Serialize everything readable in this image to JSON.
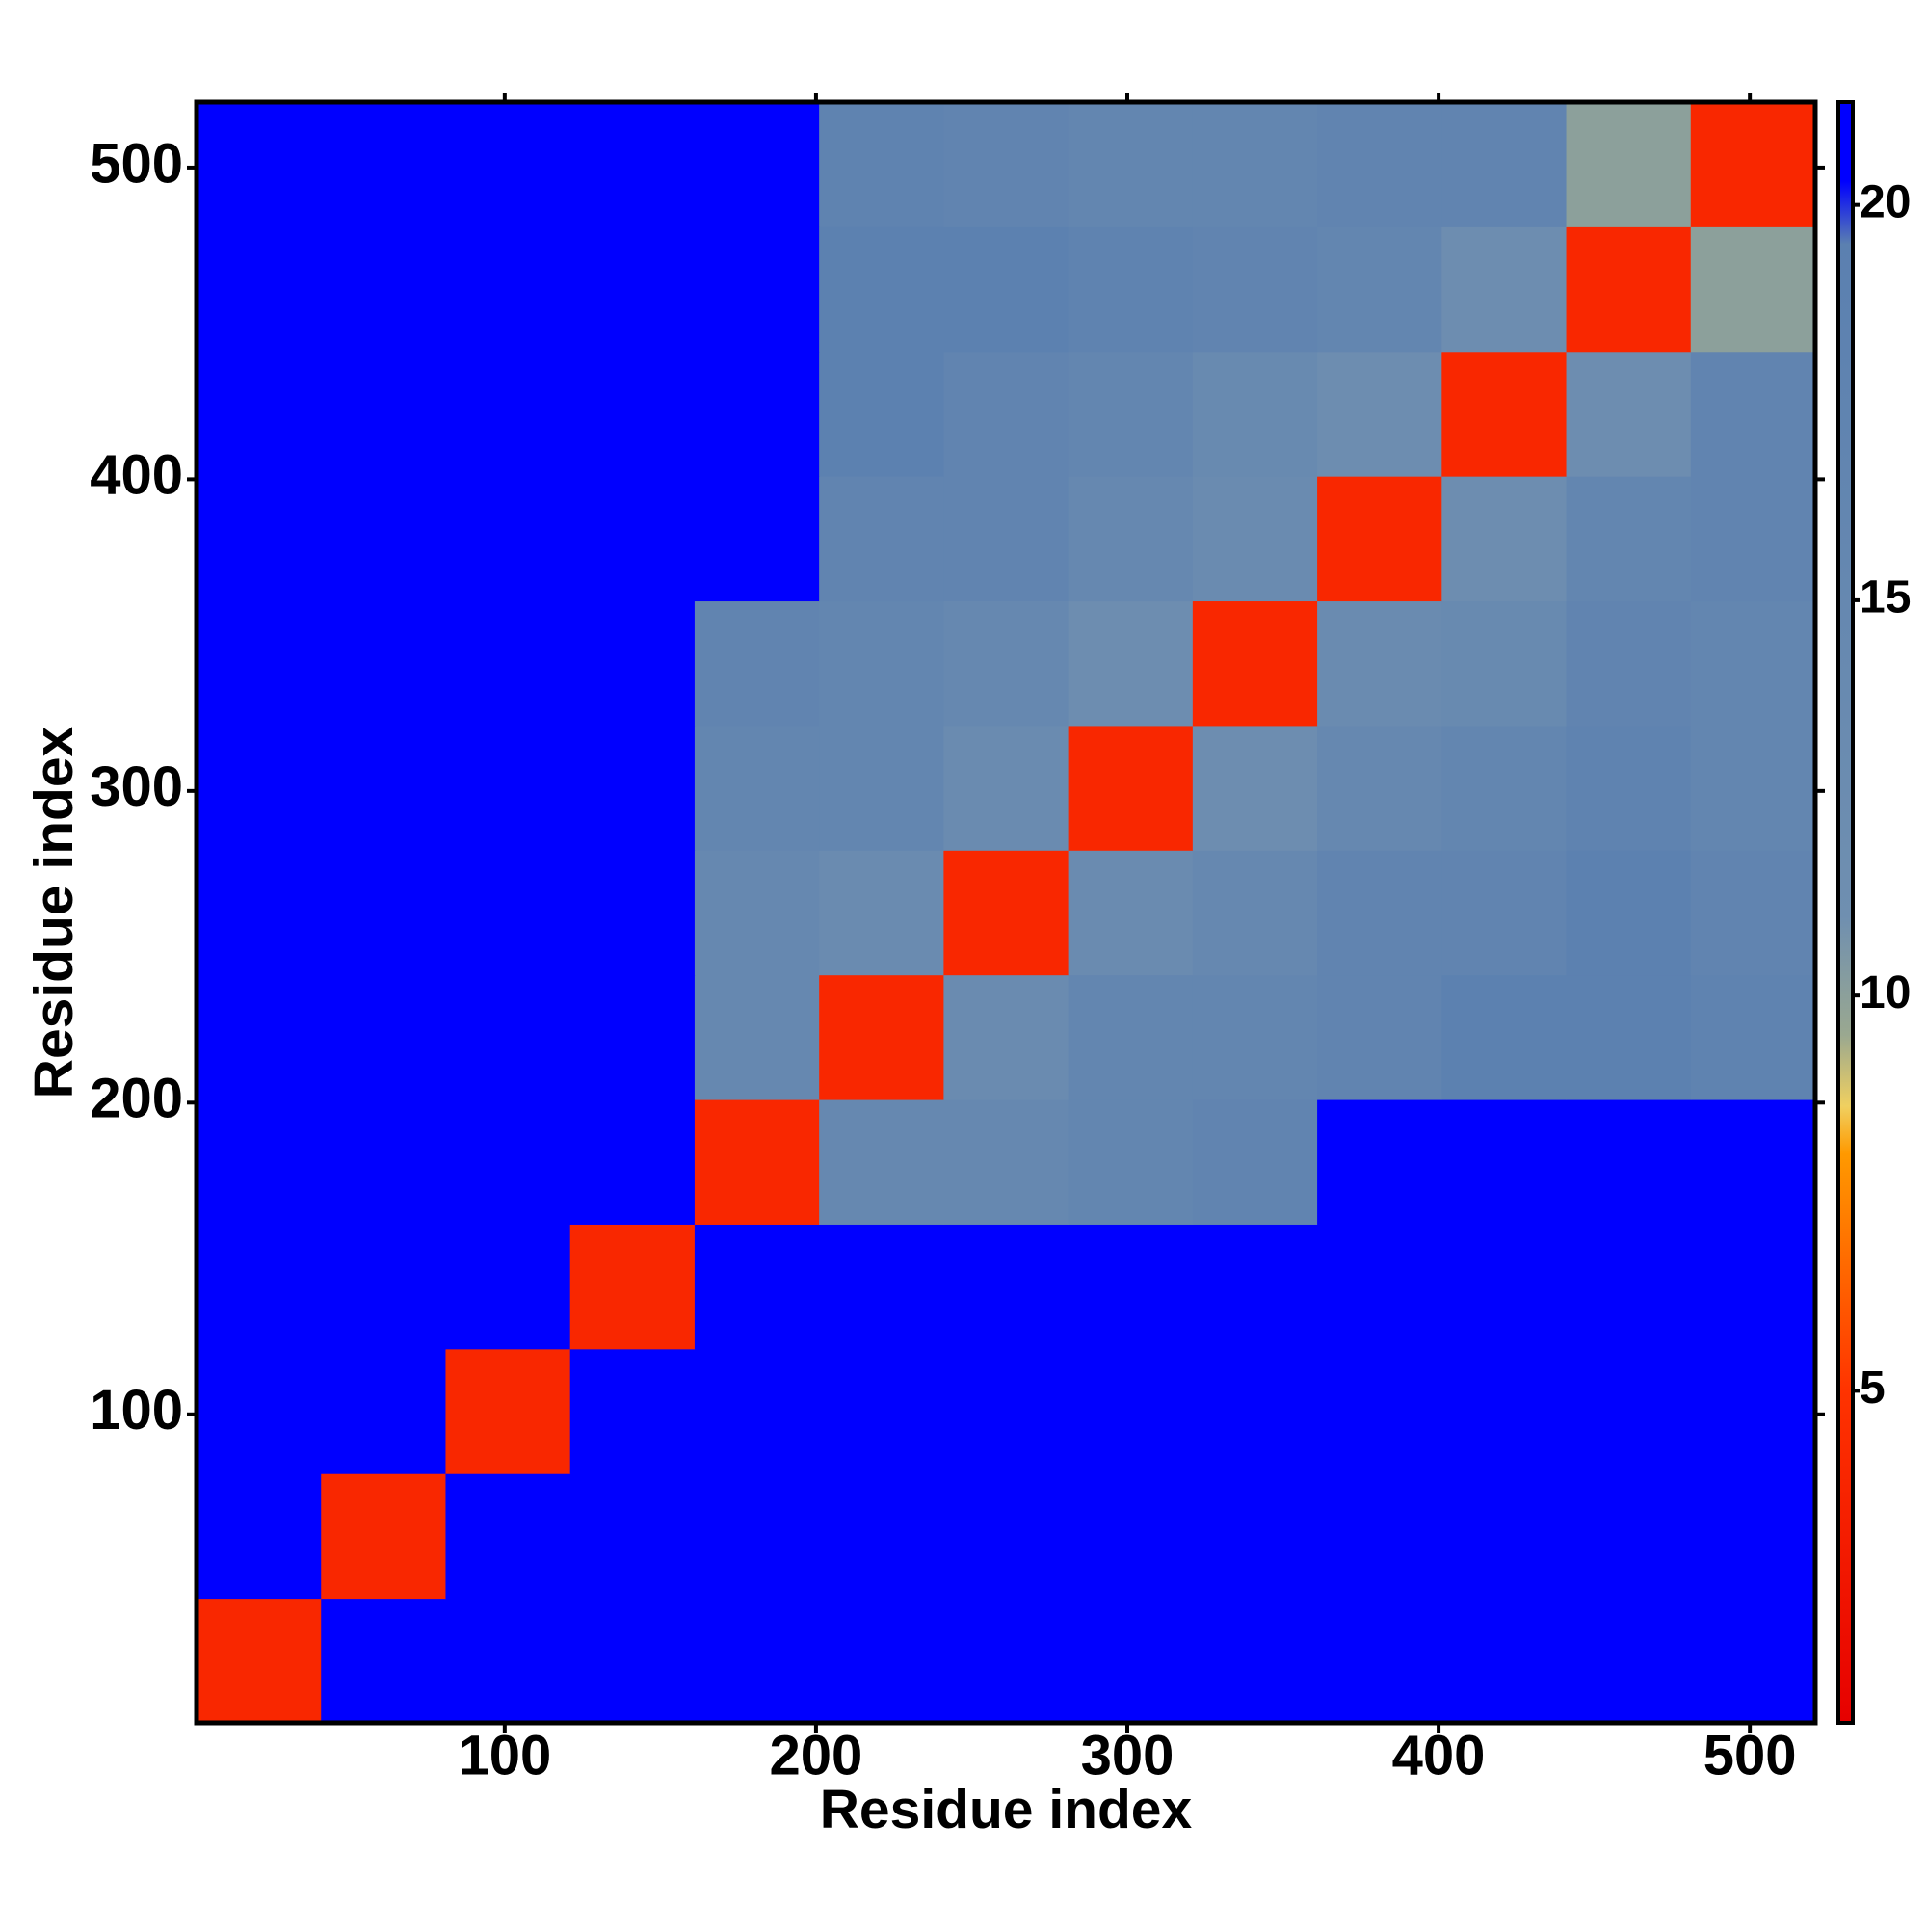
{
  "chart_data": {
    "type": "heatmap",
    "xlabel": "Residue index",
    "ylabel": "Residue index",
    "xlim": [
      1,
      521
    ],
    "ylim": [
      1,
      521
    ],
    "xticks": [
      100,
      200,
      300,
      400,
      500
    ],
    "yticks": [
      100,
      200,
      300,
      400,
      500
    ],
    "bins": [
      1,
      41,
      81,
      121,
      161,
      201,
      241,
      281,
      321,
      361,
      401,
      441,
      481,
      521
    ],
    "values": [
      [
        4,
        21,
        21,
        21,
        21,
        21,
        21,
        21,
        21,
        21,
        21,
        21,
        21
      ],
      [
        21,
        4,
        21,
        21,
        21,
        21,
        21,
        21,
        21,
        21,
        21,
        21,
        21
      ],
      [
        21,
        21,
        4,
        21,
        21,
        21,
        21,
        21,
        21,
        21,
        21,
        21,
        21
      ],
      [
        21,
        21,
        21,
        4,
        21,
        21,
        21,
        21,
        21,
        21,
        21,
        21,
        21
      ],
      [
        21,
        21,
        21,
        21,
        4,
        15,
        15,
        16,
        17,
        21,
        21,
        21,
        21
      ],
      [
        21,
        21,
        21,
        21,
        15,
        4,
        13,
        16,
        16,
        17,
        19,
        19,
        18
      ],
      [
        21,
        21,
        21,
        21,
        15,
        13,
        4,
        13,
        15,
        17,
        17,
        19,
        17
      ],
      [
        21,
        21,
        21,
        21,
        16,
        16,
        13,
        4,
        12,
        15,
        16,
        18,
        16
      ],
      [
        21,
        21,
        21,
        21,
        17,
        16,
        15,
        12,
        4,
        13,
        14,
        17,
        16
      ],
      [
        21,
        21,
        21,
        21,
        21,
        17,
        17,
        15,
        13,
        4,
        12,
        16,
        17
      ],
      [
        21,
        21,
        21,
        21,
        21,
        19,
        17,
        16,
        14,
        12,
        4,
        12,
        17
      ],
      [
        21,
        21,
        21,
        21,
        21,
        19,
        19,
        18,
        17,
        16,
        12,
        4,
        10
      ],
      [
        21,
        21,
        21,
        21,
        21,
        18,
        17,
        16,
        16,
        17,
        17,
        10,
        4
      ]
    ],
    "colorbar": {
      "lim": [
        0.8,
        21.3
      ],
      "ticks": [
        5,
        10,
        15,
        20
      ],
      "stops": [
        {
          "value": 0.8,
          "color": "#e60000"
        },
        {
          "value": 5,
          "color": "#ff3300"
        },
        {
          "value": 8,
          "color": "#ff9900"
        },
        {
          "value": 8.6,
          "color": "#f0d060"
        },
        {
          "value": 9.5,
          "color": "#9aa890"
        },
        {
          "value": 11,
          "color": "#6f8fb0"
        },
        {
          "value": 19.5,
          "color": "#5b80b0"
        },
        {
          "value": 20.3,
          "color": "#0000ff"
        },
        {
          "value": 21.3,
          "color": "#0000ff"
        }
      ]
    }
  }
}
